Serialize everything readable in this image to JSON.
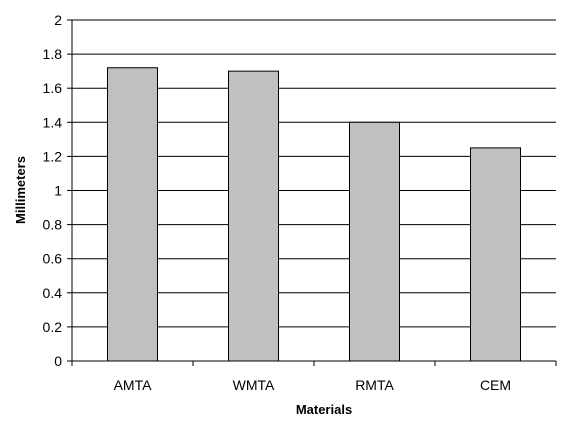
{
  "chart_data": {
    "type": "bar",
    "categories": [
      "AMTA",
      "WMTA",
      "RMTA",
      "CEM"
    ],
    "series": [
      {
        "values": [
          1.72,
          1.7,
          1.4,
          1.25
        ]
      }
    ],
    "xlabel": "Materials",
    "ylabel": "Millimeters",
    "ylim": [
      0,
      2
    ],
    "yticks": [
      "0",
      "0.2",
      "0.4",
      "0.6",
      "0.8",
      "1",
      "1.2",
      "1.4",
      "1.6",
      "1.8",
      "2"
    ],
    "grid": true,
    "legend": "none",
    "colors": {
      "bar_fill": "#c0c0c0",
      "bar_stroke": "#000000",
      "grid": "#000000",
      "axis": "#000000",
      "text": "#000000"
    }
  }
}
